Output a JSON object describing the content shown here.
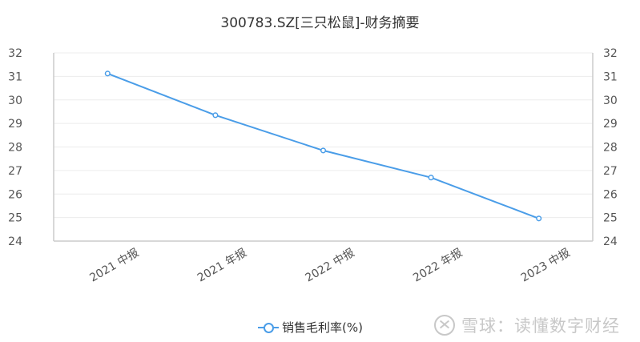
{
  "title": "300783.SZ[三只松鼠]-财务摘要",
  "legend": {
    "label": "销售毛利率(%)",
    "color": "#4a9de8"
  },
  "watermark": {
    "text": "雪球：读懂数字财经"
  },
  "axes": {
    "y_ticks": [
      "32",
      "31",
      "30",
      "29",
      "28",
      "27",
      "26",
      "25",
      "24"
    ],
    "x_ticks": [
      "2021 中报",
      "2021 年报",
      "2022 中报",
      "2022 年报",
      "2023 中报"
    ]
  },
  "chart_data": {
    "type": "line",
    "title": "300783.SZ[三只松鼠]-财务摘要",
    "categories": [
      "2021 中报",
      "2021 年报",
      "2022 中报",
      "2022 年报",
      "2023 中报"
    ],
    "series": [
      {
        "name": "销售毛利率(%)",
        "values": [
          31.12,
          29.35,
          27.85,
          26.7,
          24.96
        ],
        "color": "#4a9de8"
      }
    ],
    "xlabel": "",
    "ylabel": "",
    "ylim": [
      24,
      32
    ],
    "y_ticks": [
      24,
      25,
      26,
      27,
      28,
      29,
      30,
      31,
      32
    ],
    "y_axis_mirrored_right": true,
    "grid": true,
    "legend_position": "bottom"
  }
}
